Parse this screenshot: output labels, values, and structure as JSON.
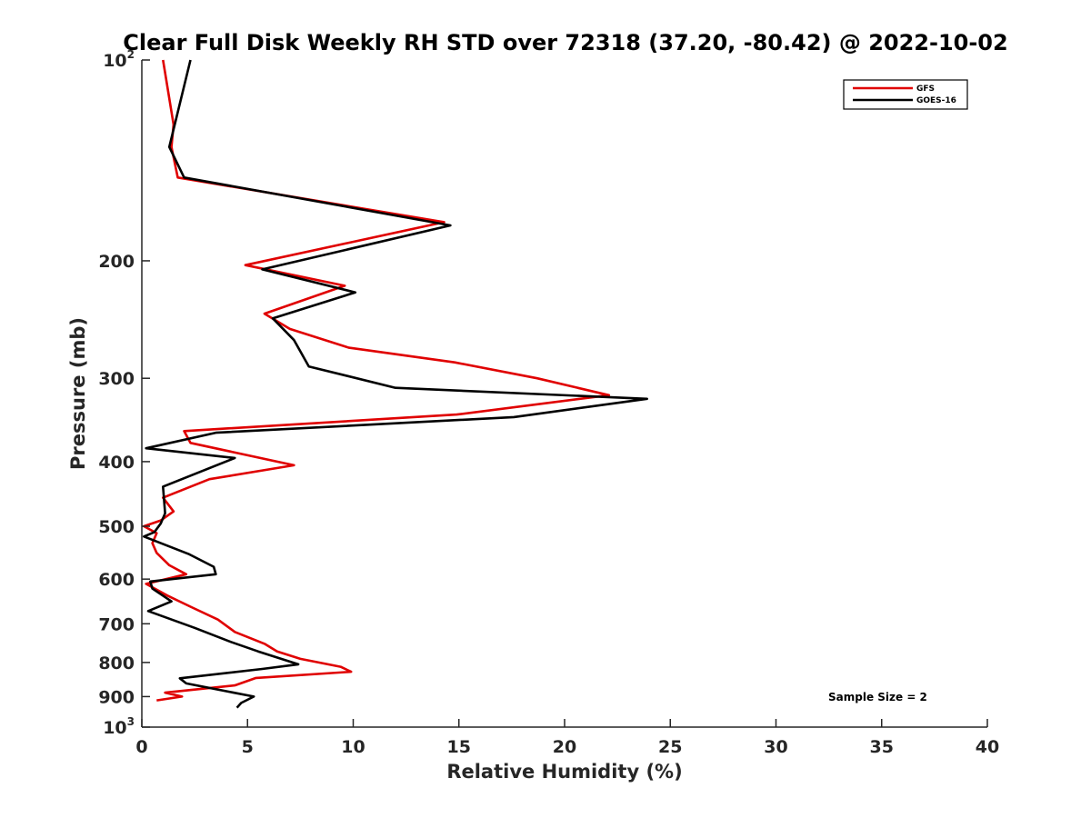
{
  "chart_data": {
    "type": "line",
    "title": "Clear Full Disk Weekly RH STD over 72318 (37.20, -80.42) @ 2022-10-02",
    "xlabel": "Relative Humidity (%)",
    "ylabel": "Pressure (mb)",
    "xlim": [
      0,
      40
    ],
    "ylim": [
      100,
      1000
    ],
    "yscale": "log",
    "y_reversed": true,
    "x_ticks": [
      "0",
      "5",
      "10",
      "15",
      "20",
      "25",
      "30",
      "35",
      "40"
    ],
    "y_ticks": [
      {
        "value": 100,
        "base": "10",
        "exp": "2"
      },
      {
        "value": 200,
        "label": "200"
      },
      {
        "value": 300,
        "label": "300"
      },
      {
        "value": 400,
        "label": "400"
      },
      {
        "value": 500,
        "label": "500"
      },
      {
        "value": 600,
        "label": "600"
      },
      {
        "value": 700,
        "label": "700"
      },
      {
        "value": 800,
        "label": "800"
      },
      {
        "value": 900,
        "label": "900"
      },
      {
        "value": 1000,
        "base": "10",
        "exp": "3"
      }
    ],
    "legend_position": "top-right",
    "annotation": "Sample Size = 2",
    "series": [
      {
        "name": "GFS",
        "color": "#e00000",
        "points": [
          [
            1.0,
            100
          ],
          [
            1.5,
            125
          ],
          [
            1.4,
            135
          ],
          [
            1.7,
            150
          ],
          [
            14.3,
            175
          ],
          [
            4.9,
            203
          ],
          [
            9.6,
            218
          ],
          [
            5.8,
            240
          ],
          [
            7.0,
            253
          ],
          [
            9.8,
            270
          ],
          [
            14.8,
            284
          ],
          [
            18.7,
            300
          ],
          [
            22.1,
            318
          ],
          [
            14.9,
            340
          ],
          [
            2.0,
            360
          ],
          [
            2.3,
            375
          ],
          [
            7.2,
            405
          ],
          [
            3.2,
            425
          ],
          [
            1.0,
            453
          ],
          [
            1.5,
            475
          ],
          [
            0.9,
            490
          ],
          [
            0.1,
            500
          ],
          [
            0.7,
            512
          ],
          [
            0.5,
            530
          ],
          [
            0.7,
            548
          ],
          [
            1.3,
            572
          ],
          [
            2.1,
            590
          ],
          [
            0.2,
            610
          ],
          [
            1.2,
            635
          ],
          [
            2.3,
            660
          ],
          [
            3.6,
            690
          ],
          [
            4.4,
            720
          ],
          [
            5.8,
            750
          ],
          [
            6.4,
            770
          ],
          [
            7.5,
            790
          ],
          [
            9.4,
            812
          ],
          [
            9.9,
            826
          ],
          [
            5.4,
            844
          ],
          [
            4.4,
            866
          ],
          [
            1.1,
            888
          ],
          [
            1.9,
            900
          ],
          [
            0.7,
            912
          ]
        ]
      },
      {
        "name": "GOES-16",
        "color": "#000000",
        "points": [
          [
            2.3,
            100
          ],
          [
            1.3,
            135
          ],
          [
            2.0,
            150
          ],
          [
            14.6,
            177
          ],
          [
            5.7,
            206
          ],
          [
            10.1,
            223
          ],
          [
            6.2,
            244
          ],
          [
            7.2,
            263
          ],
          [
            7.9,
            288
          ],
          [
            12.0,
            310
          ],
          [
            23.9,
            322
          ],
          [
            17.6,
            343
          ],
          [
            3.5,
            362
          ],
          [
            0.2,
            382
          ],
          [
            4.4,
            395
          ],
          [
            1.0,
            436
          ],
          [
            1.1,
            478
          ],
          [
            0.9,
            495
          ],
          [
            0.6,
            510
          ],
          [
            0.1,
            518
          ],
          [
            2.2,
            550
          ],
          [
            3.4,
            575
          ],
          [
            3.5,
            590
          ],
          [
            0.4,
            605
          ],
          [
            0.5,
            620
          ],
          [
            1.4,
            648
          ],
          [
            0.3,
            670
          ],
          [
            2.5,
            710
          ],
          [
            4.2,
            745
          ],
          [
            5.5,
            770
          ],
          [
            7.4,
            805
          ],
          [
            5.7,
            818
          ],
          [
            1.8,
            845
          ],
          [
            2.1,
            860
          ],
          [
            5.3,
            900
          ],
          [
            4.7,
            920
          ],
          [
            4.5,
            935
          ]
        ]
      }
    ]
  }
}
